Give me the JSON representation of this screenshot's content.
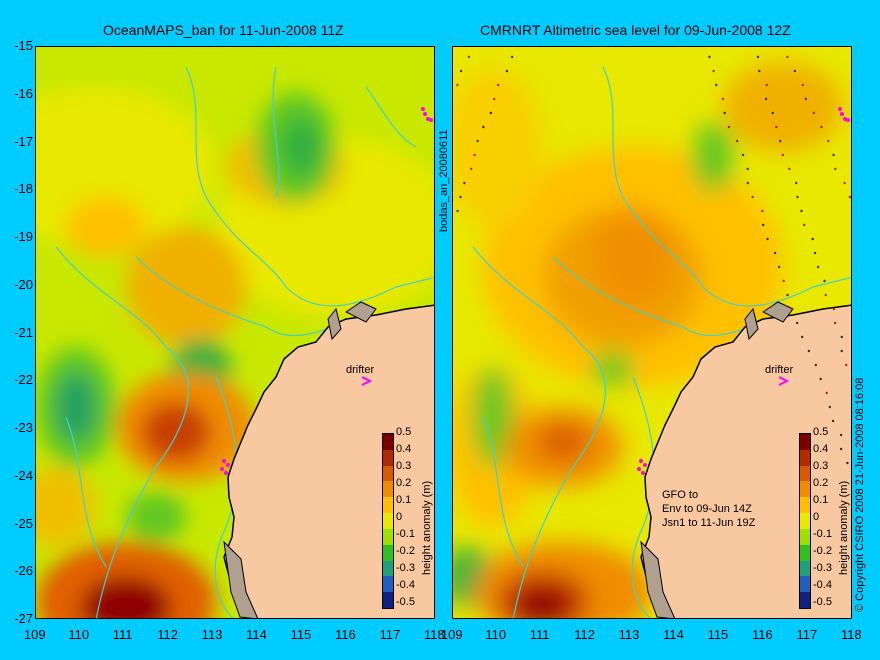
{
  "left_map": {
    "title": "OceanMAPS_ban for 11-Jun-2008 11Z",
    "drifter_label": "drifter"
  },
  "right_map": {
    "title": "CMRNRT Altimetric sea level  for 09-Jun-2008 12Z",
    "drifter_label": "drifter",
    "annotation_lines": [
      "GFO to",
      "Env to 09-Jun 14Z",
      "Jsn1 to 11-Jun 19Z"
    ]
  },
  "side_labels": {
    "run_id": "bodas_an_20080611",
    "copyright": "© Copyright CSIRO 2008   21-Jun-2008 08:16:08"
  },
  "axes": {
    "y_ticks": [
      "-15",
      "-16",
      "-17",
      "-18",
      "-19",
      "-20",
      "-21",
      "-22",
      "-23",
      "-24",
      "-25",
      "-26",
      "-27"
    ],
    "x_ticks_left": [
      "109",
      "110",
      "111",
      "112",
      "113",
      "114",
      "115",
      "116",
      "117",
      "118"
    ],
    "x_ticks_right": [
      "109",
      "110",
      "111",
      "112",
      "113",
      "114",
      "115",
      "116",
      "117",
      "118"
    ]
  },
  "colorbar": {
    "label": "height anomaly (m)",
    "ticks": [
      "0.5",
      "0.4",
      "0.3",
      "0.2",
      "0.1",
      "0",
      "-0.1",
      "-0.2",
      "-0.3",
      "-0.4",
      "-0.5"
    ],
    "colors": [
      "#7a0000",
      "#b22a00",
      "#d85a00",
      "#f08c00",
      "#ffc000",
      "#e8e800",
      "#a0e000",
      "#30c020",
      "#20a080",
      "#2060c0",
      "#102080"
    ]
  },
  "palette": {
    "frame_bg": "#00ccff",
    "land": "#f8c8a0",
    "shelf_contour": "#40d0d0",
    "drifter_track": "#ff00ff"
  }
}
